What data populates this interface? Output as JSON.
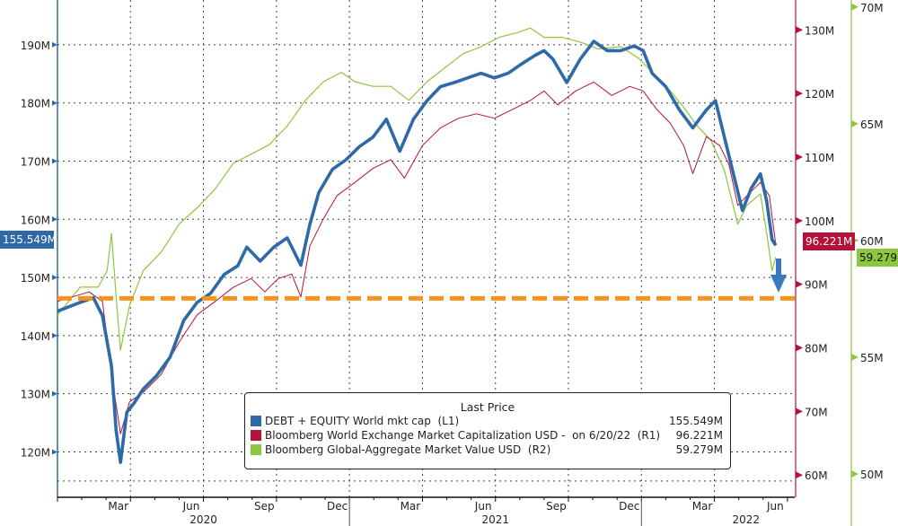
{
  "chart_data": {
    "type": "line",
    "x_unit": "months since 2020-01-01",
    "x_range": [
      0,
      30.3
    ],
    "x_ticks": {
      "months": [
        "Mar",
        "Jun",
        "Sep",
        "Dec",
        "Mar",
        "Jun",
        "Sep",
        "Dec",
        "Mar",
        "Jun"
      ],
      "month_pos": [
        2.5,
        5.5,
        8.5,
        11.5,
        14.5,
        17.5,
        20.5,
        23.5,
        26.5,
        29.5
      ],
      "years": [
        "2020",
        "2021",
        "2022"
      ],
      "year_pos": [
        6,
        18,
        28.3
      ]
    },
    "axes": {
      "L1": {
        "ticks": [
          "120M",
          "130M",
          "140M",
          "150M",
          "160M",
          "170M",
          "180M",
          "190M"
        ],
        "values": [
          120,
          130,
          140,
          150,
          160,
          170,
          180,
          190
        ],
        "range": [
          112.2,
          197.7
        ],
        "color": "#2e6aa8"
      },
      "R1": {
        "ticks": [
          "60M",
          "70M",
          "80M",
          "90M",
          "100M",
          "110M",
          "120M",
          "130M"
        ],
        "values": [
          60,
          70,
          80,
          90,
          100,
          110,
          120,
          130
        ],
        "range": [
          56.5,
          134.7
        ],
        "color": "#b5123b"
      },
      "R2": {
        "ticks": [
          "50M",
          "55M",
          "60M",
          "65M",
          "70M"
        ],
        "values": [
          50,
          55,
          60,
          65,
          70
        ],
        "range": [
          49,
          70.3
        ],
        "color": "#8dc63f"
      }
    },
    "legend": {
      "title": "Last Price",
      "position": "bottom-center",
      "entries": [
        {
          "name": "DEBT + EQUITY World mkt cap  (L1)",
          "value": "155.549M",
          "color": "#2e6aa8"
        },
        {
          "name": "Bloomberg World Exchange Market Capitalization USD -  on 6/20/22  (R1)",
          "value": "96.221M",
          "color": "#b5123b"
        },
        {
          "name": "Bloomberg Global-Aggregate Market Value USD  (R2)",
          "value": "59.279M",
          "color": "#8dc63f"
        }
      ]
    },
    "series": [
      {
        "name": "DEBT + EQUITY World mkt cap",
        "axis": "L1",
        "color": "#2e6aa8",
        "last": "155.549M",
        "points": [
          [
            0,
            144.2
          ],
          [
            0.93,
            145.7
          ],
          [
            1.48,
            146.5
          ],
          [
            1.85,
            143.4
          ],
          [
            2.22,
            134.7
          ],
          [
            2.41,
            123.7
          ],
          [
            2.59,
            118.2
          ],
          [
            2.85,
            126.8
          ],
          [
            3.15,
            128.4
          ],
          [
            3.52,
            130.8
          ],
          [
            4.07,
            133.1
          ],
          [
            4.63,
            136.3
          ],
          [
            5.19,
            142.6
          ],
          [
            5.74,
            145.7
          ],
          [
            6.3,
            147.3
          ],
          [
            6.85,
            150.5
          ],
          [
            7.41,
            152
          ],
          [
            7.78,
            155.2
          ],
          [
            8.33,
            152.8
          ],
          [
            8.89,
            155.2
          ],
          [
            9.44,
            156.8
          ],
          [
            10,
            152.1
          ],
          [
            10.37,
            159.1
          ],
          [
            10.74,
            164.6
          ],
          [
            11.3,
            168.6
          ],
          [
            11.85,
            170.2
          ],
          [
            12.41,
            172.5
          ],
          [
            12.96,
            174.1
          ],
          [
            13.52,
            177.2
          ],
          [
            14.07,
            171.7
          ],
          [
            14.63,
            177.2
          ],
          [
            15.19,
            180.4
          ],
          [
            15.74,
            182.8
          ],
          [
            16.3,
            183.5
          ],
          [
            16.85,
            184.3
          ],
          [
            17.41,
            185.1
          ],
          [
            17.96,
            184.3
          ],
          [
            18.52,
            185.1
          ],
          [
            19.07,
            186.7
          ],
          [
            19.63,
            188.2
          ],
          [
            20,
            189
          ],
          [
            20.37,
            187.5
          ],
          [
            20.93,
            183.5
          ],
          [
            21.48,
            187.5
          ],
          [
            22.04,
            190.6
          ],
          [
            22.59,
            189
          ],
          [
            23.15,
            189
          ],
          [
            23.7,
            189.8
          ],
          [
            24.07,
            189
          ],
          [
            24.44,
            185.1
          ],
          [
            25,
            182.8
          ],
          [
            25.56,
            178.8
          ],
          [
            26.11,
            175.7
          ],
          [
            26.67,
            178.8
          ],
          [
            27.04,
            180.4
          ],
          [
            27.41,
            174.1
          ],
          [
            27.78,
            167.8
          ],
          [
            28.15,
            161.5
          ],
          [
            28.52,
            165.4
          ],
          [
            28.89,
            167.8
          ],
          [
            29.15,
            163.1
          ],
          [
            29.37,
            156.5
          ],
          [
            29.52,
            155.5
          ]
        ]
      },
      {
        "name": "Bloomberg World Exchange Market Capitalization USD",
        "axis": "R1",
        "color": "#b5123b",
        "last": "96.221M",
        "points": [
          [
            0,
            87.3
          ],
          [
            1.3,
            88.8
          ],
          [
            1.85,
            87.3
          ],
          [
            2.22,
            75.8
          ],
          [
            2.59,
            66.5
          ],
          [
            2.96,
            71.5
          ],
          [
            3.52,
            73
          ],
          [
            4.26,
            75.8
          ],
          [
            5,
            80.9
          ],
          [
            5.74,
            85.2
          ],
          [
            6.48,
            87.3
          ],
          [
            7.22,
            89.5
          ],
          [
            7.96,
            90.9
          ],
          [
            8.52,
            88.8
          ],
          [
            9.07,
            90.9
          ],
          [
            9.63,
            91.6
          ],
          [
            10,
            88
          ],
          [
            10.37,
            96
          ],
          [
            10.93,
            100.3
          ],
          [
            11.48,
            103.9
          ],
          [
            12.22,
            106
          ],
          [
            12.96,
            108.2
          ],
          [
            13.7,
            109.6
          ],
          [
            14.26,
            106.7
          ],
          [
            15,
            111.8
          ],
          [
            15.74,
            114.6
          ],
          [
            16.48,
            116.1
          ],
          [
            17.22,
            116.8
          ],
          [
            17.96,
            116.1
          ],
          [
            18.7,
            117.5
          ],
          [
            19.44,
            118.9
          ],
          [
            20,
            120.4
          ],
          [
            20.56,
            118.2
          ],
          [
            21.3,
            120.4
          ],
          [
            22.04,
            121.8
          ],
          [
            22.78,
            119.7
          ],
          [
            23.52,
            121.1
          ],
          [
            24.07,
            120.4
          ],
          [
            24.63,
            117.5
          ],
          [
            25.19,
            115.3
          ],
          [
            25.74,
            111.8
          ],
          [
            26.11,
            107.4
          ],
          [
            26.67,
            113.2
          ],
          [
            27.22,
            111.8
          ],
          [
            27.59,
            108.9
          ],
          [
            27.96,
            102.4
          ],
          [
            28.33,
            103.9
          ],
          [
            28.89,
            106
          ],
          [
            29.26,
            103.9
          ],
          [
            29.52,
            96.2
          ]
        ]
      },
      {
        "name": "Bloomberg Global-Aggregate Market Value USD",
        "axis": "R2",
        "color": "#8dc63f",
        "last": "59.279M",
        "points": [
          [
            0,
            56.8
          ],
          [
            0.93,
            58
          ],
          [
            1.67,
            58
          ],
          [
            2.04,
            58.7
          ],
          [
            2.22,
            60.3
          ],
          [
            2.41,
            57.6
          ],
          [
            2.59,
            55.3
          ],
          [
            2.96,
            57.2
          ],
          [
            3.52,
            58.7
          ],
          [
            4.26,
            59.5
          ],
          [
            5,
            60.7
          ],
          [
            5.74,
            61.4
          ],
          [
            6.48,
            62.2
          ],
          [
            7.22,
            63.3
          ],
          [
            7.96,
            63.7
          ],
          [
            8.7,
            64.1
          ],
          [
            9.44,
            64.9
          ],
          [
            10.19,
            66
          ],
          [
            10.93,
            66.8
          ],
          [
            11.67,
            67.2
          ],
          [
            12.22,
            66.8
          ],
          [
            12.96,
            66.6
          ],
          [
            13.7,
            66.6
          ],
          [
            14.44,
            66
          ],
          [
            15.19,
            66.8
          ],
          [
            15.93,
            67.4
          ],
          [
            16.67,
            68
          ],
          [
            17.41,
            68.3
          ],
          [
            18.15,
            68.7
          ],
          [
            18.89,
            68.9
          ],
          [
            19.44,
            69.1
          ],
          [
            20,
            68.7
          ],
          [
            20.74,
            68.7
          ],
          [
            21.48,
            68.5
          ],
          [
            22.22,
            68.2
          ],
          [
            23.15,
            68.3
          ],
          [
            23.89,
            67.8
          ],
          [
            24.63,
            67
          ],
          [
            25.19,
            66.4
          ],
          [
            25.74,
            65.7
          ],
          [
            26.3,
            64.9
          ],
          [
            26.85,
            64.3
          ],
          [
            27.41,
            63
          ],
          [
            27.96,
            60.7
          ],
          [
            28.33,
            61.5
          ],
          [
            28.89,
            62
          ],
          [
            29.15,
            60.3
          ],
          [
            29.37,
            58.7
          ],
          [
            29.52,
            59.3
          ]
        ]
      }
    ],
    "annotations": {
      "support_line_L1": 146.4,
      "support_color": "#f7941d",
      "arrow": "down"
    }
  }
}
